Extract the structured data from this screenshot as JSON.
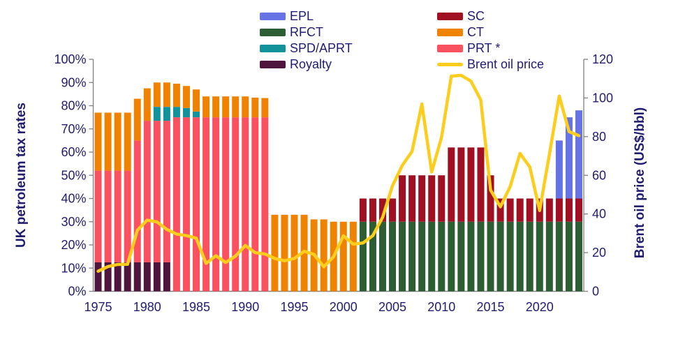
{
  "left_axis": {
    "title": "UK petroleum tax rates",
    "ticks": [
      "0%",
      "10%",
      "20%",
      "30%",
      "40%",
      "50%",
      "60%",
      "70%",
      "80%",
      "90%",
      "100%"
    ],
    "min": 0,
    "max": 100,
    "step": 10
  },
  "right_axis": {
    "title": "Brent oil price (US$/bbl)",
    "ticks": [
      "0",
      "20",
      "40",
      "60",
      "80",
      "100",
      "120"
    ],
    "min": 0,
    "max": 120,
    "step": 20
  },
  "x_axis": {
    "tick_years": [
      1975,
      1980,
      1985,
      1990,
      1995,
      2000,
      2005,
      2010,
      2015,
      2020
    ]
  },
  "legend": {
    "columns": [
      [
        {
          "label": "EPL",
          "series": "EPL",
          "type": "bar",
          "color": "#6673E4"
        },
        {
          "label": "RFCT",
          "series": "RFCT",
          "type": "bar",
          "color": "#2C5D33"
        },
        {
          "label": "SPD/APRT",
          "series": "SPD/APRT",
          "type": "bar",
          "color": "#12929B"
        },
        {
          "label": "Royalty",
          "series": "Royalty",
          "type": "bar",
          "color": "#4E163D"
        }
      ],
      [
        {
          "label": "SC",
          "series": "SC",
          "type": "bar",
          "color": "#A01022"
        },
        {
          "label": "CT",
          "series": "CT",
          "type": "bar",
          "color": "#EF8200"
        },
        {
          "label": "PRT *",
          "series": "PRT",
          "type": "bar",
          "color": "#F9515F"
        },
        {
          "label": "Brent oil price",
          "series": "Brent oil price",
          "type": "line",
          "color": "#FDCD1D"
        }
      ]
    ]
  },
  "colors": {
    "EPL": "#6673E4",
    "RFCT": "#2C5D33",
    "SPD/APRT": "#12929B",
    "Royalty": "#4E163D",
    "SC": "#A01022",
    "CT": "#EF8200",
    "PRT": "#F9515F",
    "brent_line": "#FDCD1D",
    "text_navy": "#201C70",
    "axis_gray": "#808080"
  },
  "chart_data": {
    "type": "bar",
    "subtype": "stacked-bars-with-line-overlay",
    "x": [
      1975,
      1976,
      1977,
      1978,
      1979,
      1980,
      1981,
      1982,
      1983,
      1984,
      1985,
      1986,
      1987,
      1988,
      1989,
      1990,
      1991,
      1992,
      1993,
      1994,
      1995,
      1996,
      1997,
      1998,
      1999,
      2000,
      2001,
      2002,
      2003,
      2004,
      2005,
      2006,
      2007,
      2008,
      2009,
      2010,
      2011,
      2012,
      2013,
      2014,
      2015,
      2016,
      2017,
      2018,
      2019,
      2020,
      2021,
      2022,
      2023,
      2024
    ],
    "left_ylabel": "UK petroleum tax rates",
    "right_ylabel": "Brent oil price (US$/bbl)",
    "left_ylim": [
      0,
      100
    ],
    "right_ylim": [
      0,
      120
    ],
    "grid": false,
    "legend_position": "top",
    "series": [
      {
        "name": "Royalty",
        "axis": "left",
        "unit": "%",
        "values": [
          12.5,
          12.5,
          12.5,
          12.5,
          12.5,
          12.5,
          12.5,
          12.5,
          0,
          0,
          0,
          0,
          0,
          0,
          0,
          0,
          0,
          0,
          0,
          0,
          0,
          0,
          0,
          0,
          0,
          0,
          0,
          0,
          0,
          0,
          0,
          0,
          0,
          0,
          0,
          0,
          0,
          0,
          0,
          0,
          0,
          0,
          0,
          0,
          0,
          0,
          0,
          0,
          0,
          0
        ]
      },
      {
        "name": "PRT",
        "axis": "left",
        "unit": "%",
        "values": [
          39.5,
          39.5,
          39.5,
          39.5,
          52.5,
          61,
          61,
          61,
          75,
          75,
          75,
          75,
          75,
          75,
          75,
          75,
          75,
          75,
          0,
          0,
          0,
          0,
          0,
          0,
          0,
          0,
          0,
          0,
          0,
          0,
          0,
          0,
          0,
          0,
          0,
          0,
          0,
          0,
          0,
          0,
          0,
          0,
          0,
          0,
          0,
          0,
          0,
          0,
          0,
          0
        ]
      },
      {
        "name": "SPD/APRT",
        "axis": "left",
        "unit": "%",
        "values": [
          0,
          0,
          0,
          0,
          0,
          0,
          6,
          6,
          4.5,
          4,
          2.5,
          0,
          0,
          0,
          0,
          0,
          0,
          0,
          0,
          0,
          0,
          0,
          0,
          0,
          0,
          0,
          0,
          0,
          0,
          0,
          0,
          0,
          0,
          0,
          0,
          0,
          0,
          0,
          0,
          0,
          0,
          0,
          0,
          0,
          0,
          0,
          0,
          0,
          0,
          0
        ]
      },
      {
        "name": "CT",
        "axis": "left",
        "unit": "%",
        "values": [
          25,
          25,
          25,
          25,
          18,
          14,
          10.5,
          10.5,
          10,
          9.5,
          9.5,
          9,
          9,
          9,
          9,
          9,
          8.5,
          8.3,
          33,
          33,
          33,
          33,
          31,
          31,
          30,
          30,
          30,
          0,
          0,
          0,
          0,
          0,
          0,
          0,
          0,
          0,
          0,
          0,
          0,
          0,
          0,
          0,
          0,
          0,
          0,
          0,
          0,
          0,
          0,
          0
        ]
      },
      {
        "name": "RFCT",
        "axis": "left",
        "unit": "%",
        "values": [
          0,
          0,
          0,
          0,
          0,
          0,
          0,
          0,
          0,
          0,
          0,
          0,
          0,
          0,
          0,
          0,
          0,
          0,
          0,
          0,
          0,
          0,
          0,
          0,
          0,
          0,
          0,
          30,
          30,
          30,
          30,
          30,
          30,
          30,
          30,
          30,
          30,
          30,
          30,
          30,
          30,
          30,
          30,
          30,
          30,
          30,
          30,
          30,
          30,
          30
        ]
      },
      {
        "name": "SC",
        "axis": "left",
        "unit": "%",
        "values": [
          0,
          0,
          0,
          0,
          0,
          0,
          0,
          0,
          0,
          0,
          0,
          0,
          0,
          0,
          0,
          0,
          0,
          0,
          0,
          0,
          0,
          0,
          0,
          0,
          0,
          0,
          0,
          10,
          10,
          10,
          10,
          20,
          20,
          20,
          20,
          20,
          32,
          32,
          32,
          32,
          20,
          10,
          10,
          10,
          10,
          10,
          10,
          10,
          10,
          10
        ]
      },
      {
        "name": "EPL",
        "axis": "left",
        "unit": "%",
        "values": [
          0,
          0,
          0,
          0,
          0,
          0,
          0,
          0,
          0,
          0,
          0,
          0,
          0,
          0,
          0,
          0,
          0,
          0,
          0,
          0,
          0,
          0,
          0,
          0,
          0,
          0,
          0,
          0,
          0,
          0,
          0,
          0,
          0,
          0,
          0,
          0,
          0,
          0,
          0,
          0,
          0,
          0,
          0,
          0,
          0,
          0,
          0,
          25,
          35,
          38
        ]
      }
    ],
    "line_series": {
      "name": "Brent oil price",
      "axis": "right",
      "unit": "US$/bbl",
      "values": [
        10.4,
        12.8,
        13.9,
        14,
        31.6,
        36.8,
        35.9,
        32,
        29.6,
        28.8,
        27.5,
        14.4,
        18.4,
        14.9,
        18.2,
        23.7,
        20,
        19.3,
        17,
        15.8,
        17,
        20.7,
        19.1,
        12.7,
        17.9,
        28.7,
        24.4,
        25,
        28.8,
        38.3,
        54.6,
        65.1,
        72.4,
        96.9,
        61.7,
        79.6,
        111.3,
        111.7,
        108.7,
        99,
        52.4,
        43.7,
        54.2,
        71.3,
        64.3,
        41.8,
        70.9,
        101,
        82.6,
        80.5
      ]
    },
    "stack_order_bottom_to_top": [
      "Royalty",
      "PRT",
      "SPD/APRT",
      "CT",
      "RFCT",
      "SC",
      "EPL"
    ]
  }
}
